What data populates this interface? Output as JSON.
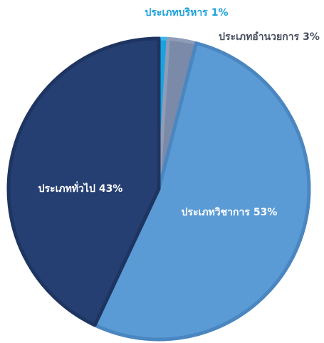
{
  "chart_data": {
    "type": "pie",
    "categories": [
      "ประเภทบริหาร",
      "ประเภทอำนวยการ",
      "ประเภทวิชาการ",
      "ประเภททั่วไป"
    ],
    "values": [
      1,
      3,
      53,
      43
    ],
    "value_labels": [
      "1%",
      "3%",
      "53%",
      "43%"
    ],
    "colors": [
      "#1ba1de",
      "#7b8aa8",
      "#5b9bd5",
      "#263f73"
    ]
  }
}
